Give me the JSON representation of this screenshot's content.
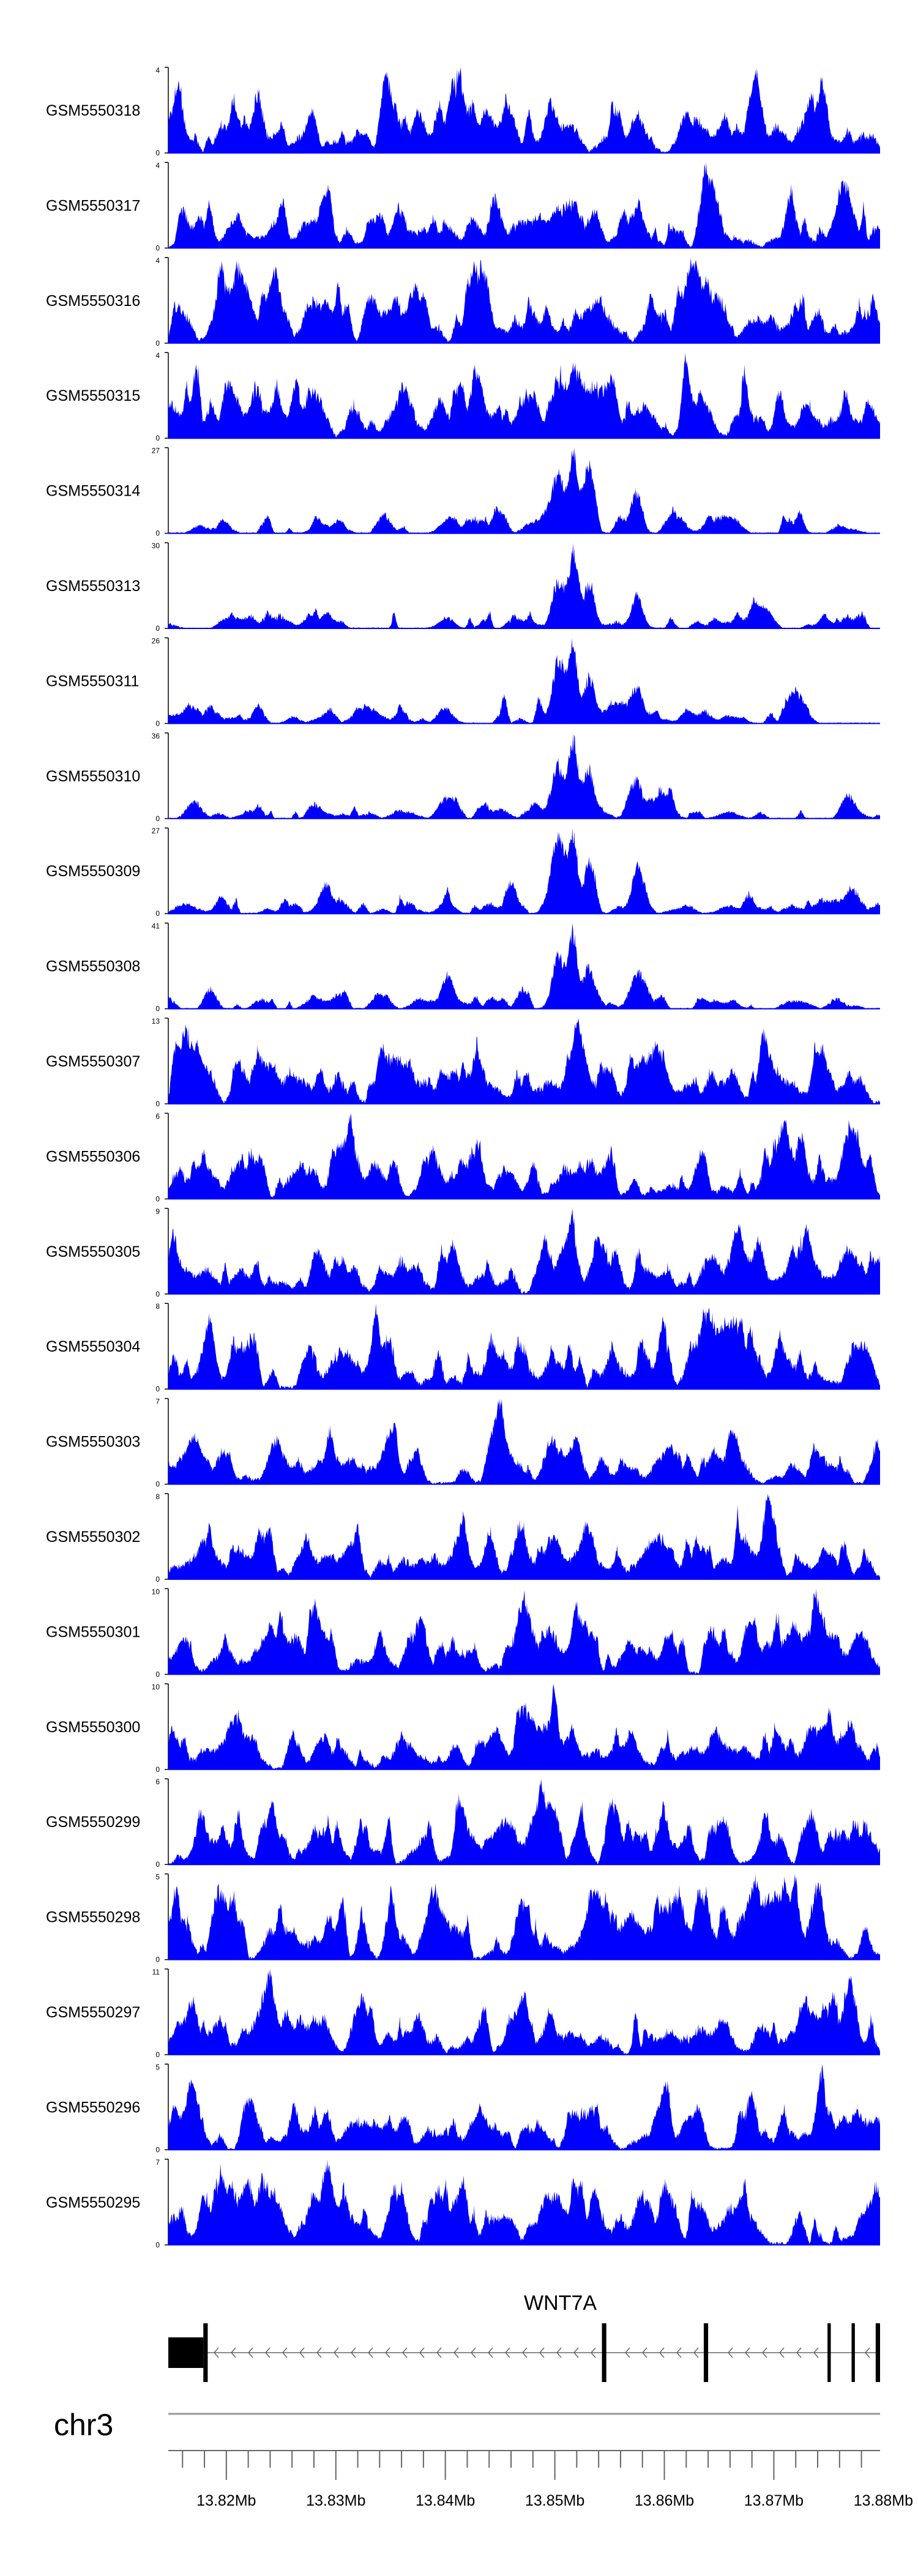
{
  "chart_data": {
    "type": "area",
    "tracks": [
      {
        "name": "GSM5550318",
        "ymax": 4,
        "ymin": 0,
        "peak": "none",
        "seed": 318
      },
      {
        "name": "GSM5550317",
        "ymax": 4,
        "ymin": 0,
        "peak": "none",
        "seed": 317
      },
      {
        "name": "GSM5550316",
        "ymax": 4,
        "ymin": 0,
        "peak": "none",
        "seed": 316
      },
      {
        "name": "GSM5550315",
        "ymax": 4,
        "ymin": 0,
        "peak": "none",
        "seed": 315
      },
      {
        "name": "GSM5550314",
        "ymax": 27,
        "ymin": 0,
        "peak": "strong",
        "seed": 314
      },
      {
        "name": "GSM5550313",
        "ymax": 30,
        "ymin": 0,
        "peak": "strong",
        "seed": 313
      },
      {
        "name": "GSM5550311",
        "ymax": 26,
        "ymin": 0,
        "peak": "strong",
        "seed": 311
      },
      {
        "name": "GSM5550310",
        "ymax": 36,
        "ymin": 0,
        "peak": "strong",
        "seed": 310
      },
      {
        "name": "GSM5550309",
        "ymax": 27,
        "ymin": 0,
        "peak": "strong",
        "seed": 309
      },
      {
        "name": "GSM5550308",
        "ymax": 41,
        "ymin": 0,
        "peak": "strong",
        "seed": 308
      },
      {
        "name": "GSM5550307",
        "ymax": 13,
        "ymin": 0,
        "peak": "medium",
        "seed": 307
      },
      {
        "name": "GSM5550306",
        "ymax": 6,
        "ymin": 0,
        "peak": "none",
        "seed": 306
      },
      {
        "name": "GSM5550305",
        "ymax": 9,
        "ymin": 0,
        "peak": "weak",
        "seed": 305
      },
      {
        "name": "GSM5550304",
        "ymax": 8,
        "ymin": 0,
        "peak": "weak",
        "seed": 304
      },
      {
        "name": "GSM5550303",
        "ymax": 7,
        "ymin": 0,
        "peak": "weak",
        "seed": 303
      },
      {
        "name": "GSM5550302",
        "ymax": 8,
        "ymin": 0,
        "peak": "weak",
        "seed": 302
      },
      {
        "name": "GSM5550301",
        "ymax": 10,
        "ymin": 0,
        "peak": "weak",
        "seed": 301
      },
      {
        "name": "GSM5550300",
        "ymax": 10,
        "ymin": 0,
        "peak": "weak",
        "seed": 300
      },
      {
        "name": "GSM5550299",
        "ymax": 6,
        "ymin": 0,
        "peak": "none",
        "seed": 299
      },
      {
        "name": "GSM5550298",
        "ymax": 5,
        "ymin": 0,
        "peak": "none",
        "seed": 298
      },
      {
        "name": "GSM5550297",
        "ymax": 11,
        "ymin": 0,
        "peak": "none",
        "seed": 297
      },
      {
        "name": "GSM5550296",
        "ymax": 5,
        "ymin": 0,
        "peak": "none",
        "seed": 296
      },
      {
        "name": "GSM5550295",
        "ymax": 7,
        "ymin": 0,
        "peak": "none",
        "seed": 295
      }
    ],
    "xlim": [
      13.8147,
      13.8797
    ],
    "x_unit": "Mb",
    "x_ticks": [
      {
        "value": 13.82,
        "label": "13.82Mb"
      },
      {
        "value": 13.83,
        "label": "13.83Mb"
      },
      {
        "value": 13.84,
        "label": "13.84Mb"
      },
      {
        "value": 13.85,
        "label": "13.85Mb"
      },
      {
        "value": 13.86,
        "label": "13.86Mb"
      },
      {
        "value": 13.87,
        "label": "13.87Mb"
      },
      {
        "value": 13.88,
        "label": "13.88Mb"
      }
    ],
    "minor_tick_step": 0.002,
    "peak_center": 13.8512,
    "gene": {
      "name": "WNT7A",
      "start": 13.8147,
      "end": 13.8797,
      "strand": "-",
      "exons": [
        {
          "start": 13.8147,
          "end": 13.8179,
          "type": "utr"
        },
        {
          "start": 13.8179,
          "end": 13.8183,
          "type": "cds"
        },
        {
          "start": 13.8543,
          "end": 13.8547,
          "type": "cds"
        },
        {
          "start": 13.8636,
          "end": 13.864,
          "type": "cds"
        },
        {
          "start": 13.8749,
          "end": 13.8752,
          "type": "cds"
        },
        {
          "start": 13.8771,
          "end": 13.8774,
          "type": "cds"
        },
        {
          "start": 13.8793,
          "end": 13.8797,
          "type": "cds"
        }
      ]
    },
    "chromosome": "chr3",
    "colors": {
      "signal": "#0000ff",
      "axis": "#000000",
      "ideogram": "#999999"
    }
  }
}
